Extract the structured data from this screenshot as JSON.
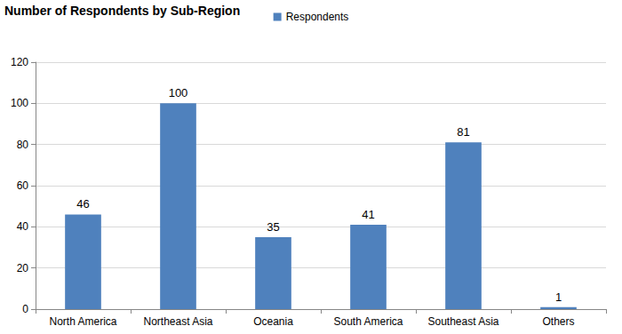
{
  "chart_data": {
    "type": "bar",
    "title": "Number of Respondents by Sub-Region",
    "categories": [
      "North America",
      "Northeast Asia",
      "Oceania",
      "South America",
      "Southeast Asia",
      "Others"
    ],
    "series": [
      {
        "name": "Respondents",
        "color": "#4f81bd",
        "values": [
          46,
          100,
          35,
          41,
          81,
          1
        ]
      }
    ],
    "ylim": [
      0,
      120
    ],
    "yticks": [
      0,
      20,
      40,
      60,
      80,
      100,
      120
    ],
    "grid": true,
    "legend": "top",
    "data_labels": true
  }
}
